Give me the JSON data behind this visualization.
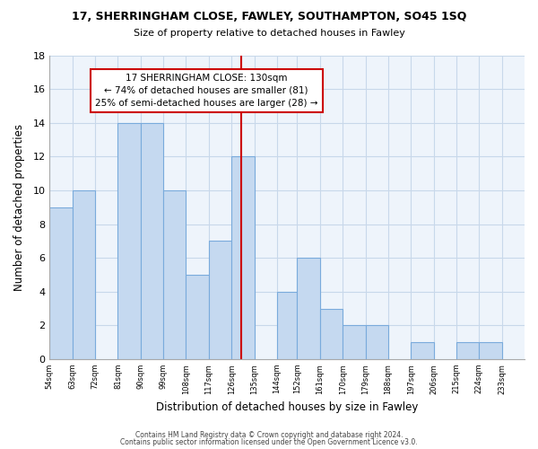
{
  "title": "17, SHERRINGHAM CLOSE, FAWLEY, SOUTHAMPTON, SO45 1SQ",
  "subtitle": "Size of property relative to detached houses in Fawley",
  "xlabel": "Distribution of detached houses by size in Fawley",
  "ylabel": "Number of detached properties",
  "footer1": "Contains HM Land Registry data © Crown copyright and database right 2024.",
  "footer2": "Contains public sector information licensed under the Open Government Licence v3.0.",
  "bin_edges": [
    54,
    63,
    72,
    81,
    90,
    99,
    108,
    117,
    126,
    135,
    144,
    152,
    161,
    170,
    179,
    188,
    197,
    206,
    215,
    224,
    233
  ],
  "counts": [
    9,
    10,
    0,
    14,
    14,
    10,
    5,
    7,
    12,
    0,
    4,
    6,
    3,
    2,
    2,
    0,
    1,
    0,
    1,
    1
  ],
  "bar_color": "#c5d9f0",
  "bar_edge_color": "#7aabdc",
  "reference_line_x": 130,
  "reference_line_color": "#cc0000",
  "annotation_text": "17 SHERRINGHAM CLOSE: 130sqm\n← 74% of detached houses are smaller (81)\n25% of semi-detached houses are larger (28) →",
  "annotation_box_edge": "#cc0000",
  "annotation_box_face": "#ffffff",
  "ylim": [
    0,
    18
  ],
  "yticks": [
    0,
    2,
    4,
    6,
    8,
    10,
    12,
    14,
    16,
    18
  ],
  "tick_labels": [
    "54sqm",
    "63sqm",
    "72sqm",
    "81sqm",
    "90sqm",
    "99sqm",
    "108sqm",
    "117sqm",
    "126sqm",
    "135sqm",
    "144sqm",
    "152sqm",
    "161sqm",
    "170sqm",
    "179sqm",
    "188sqm",
    "197sqm",
    "206sqm",
    "215sqm",
    "224sqm",
    "233sqm"
  ],
  "grid_color": "#c8d8ea",
  "background_color": "#eef4fb",
  "plot_bg_color": "#eef4fb"
}
